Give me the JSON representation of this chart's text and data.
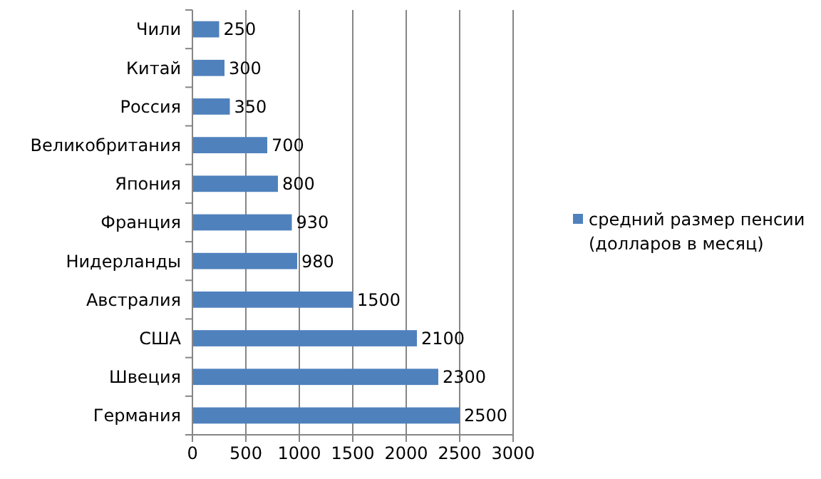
{
  "chart_data": {
    "type": "bar",
    "orientation": "horizontal",
    "categories": [
      "Чили",
      "Китай",
      "Россия",
      "Великобритания",
      "Япония",
      "Франция",
      "Нидерланды",
      "Австралия",
      "США",
      "Швеция",
      "Германия"
    ],
    "series": [
      {
        "name": "средний размер пенсии (долларов в месяц)",
        "color": "#4f81bd",
        "values": [
          250,
          300,
          350,
          700,
          800,
          930,
          980,
          1500,
          2100,
          2300,
          2500
        ]
      }
    ],
    "xlim": [
      0,
      3000
    ],
    "xticks": [
      0,
      500,
      1000,
      1500,
      2000,
      2500,
      3000
    ],
    "grid": "x",
    "legend": "right",
    "data_labels": true
  }
}
